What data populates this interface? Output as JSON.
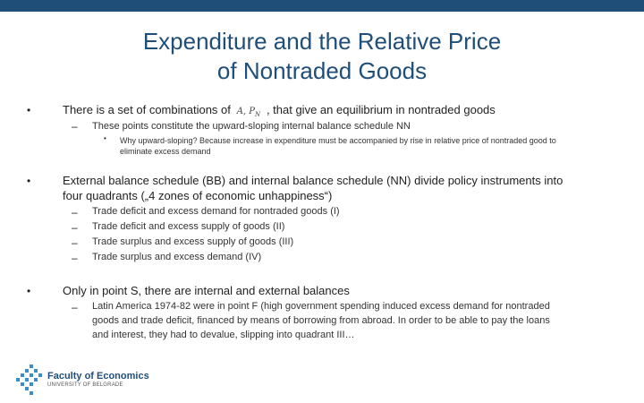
{
  "title": {
    "line1": "Expenditure and the Relative Price",
    "line2": "of Nontraded Goods"
  },
  "bullets": [
    {
      "text_before": "There is a set of combinations of",
      "math": "A, P",
      "math_sub": "N",
      "text_after": ", that give an equilibrium in nontraded goods",
      "sub": [
        {
          "text": "These points constitute the upward-sloping internal balance schedule NN",
          "sub": [
            {
              "line1": "Why upward-sloping? Because increase in expenditure must be accompanied by rise in relative price of nontraded good to",
              "line2": "eliminate excess demand"
            }
          ]
        }
      ]
    },
    {
      "line1": "External balance schedule (BB) and internal balance schedule (NN) divide policy instruments into",
      "line2": "four quadrants („4 zones of economic unhappiness“)",
      "sub": [
        "Trade deficit and excess demand for nontraded goods (I)",
        "Trade deficit and excess supply of goods (II)",
        "Trade surplus and excess supply of goods (III)",
        "Trade surplus and excess demand (IV)"
      ]
    },
    {
      "text": "Only in point S, there are internal and external balances",
      "sub": [
        {
          "line1": "Latin America 1974-82 were in point F (high government spending induced excess demand for nontraded",
          "line2": "goods and trade deficit, financed by means of borrowing from abroad. In order to be able to pay the loans",
          "line3": "and interest, they had to devalue, slipping into quadrant III…"
        }
      ]
    }
  ],
  "markers": {
    "bullet": "•",
    "dash": "–"
  },
  "logo": {
    "name": "Faculty of Economics",
    "sub": "UNIVERSITY OF BELGRADE"
  },
  "colors": {
    "accent": "#1f4e79",
    "logo_dots": "#3a8fc7"
  }
}
